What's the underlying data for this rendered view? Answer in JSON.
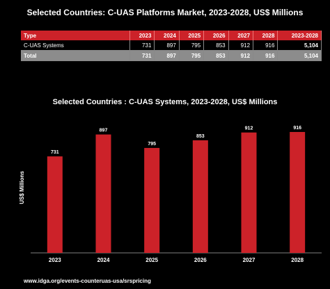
{
  "page_title": "Selected Countries: C-UAS Platforms Market, 2023-2028, US$ Millions",
  "table": {
    "headers": [
      "Type",
      "2023",
      "2024",
      "2025",
      "2026",
      "2027",
      "2028",
      "2023-2028"
    ],
    "rows": [
      [
        "C-UAS Systems",
        "731",
        "897",
        "795",
        "853",
        "912",
        "916",
        "5,104"
      ],
      [
        "Total",
        "731",
        "897",
        "795",
        "853",
        "912",
        "916",
        "5,104"
      ]
    ]
  },
  "chart_data": {
    "type": "bar",
    "title": "Selected Countries : C-UAS Systems, 2023-2028, US$ Millions",
    "xlabel": "",
    "ylabel": "US$ Millions",
    "categories": [
      "2023",
      "2024",
      "2025",
      "2026",
      "2027",
      "2028"
    ],
    "values": [
      731,
      897,
      795,
      853,
      912,
      916
    ],
    "data_labels": [
      "731",
      "897",
      "795",
      "853",
      "912",
      "916"
    ],
    "ylim": [
      0,
      1000
    ],
    "grid": false,
    "bar_color": "#cc2229"
  },
  "footer": {
    "url": "www.idga.org/events-counteruas-usa/srspricing"
  },
  "colors": {
    "background": "#000000",
    "header_red": "#cc2229",
    "total_gray": "#8c8c8c"
  }
}
